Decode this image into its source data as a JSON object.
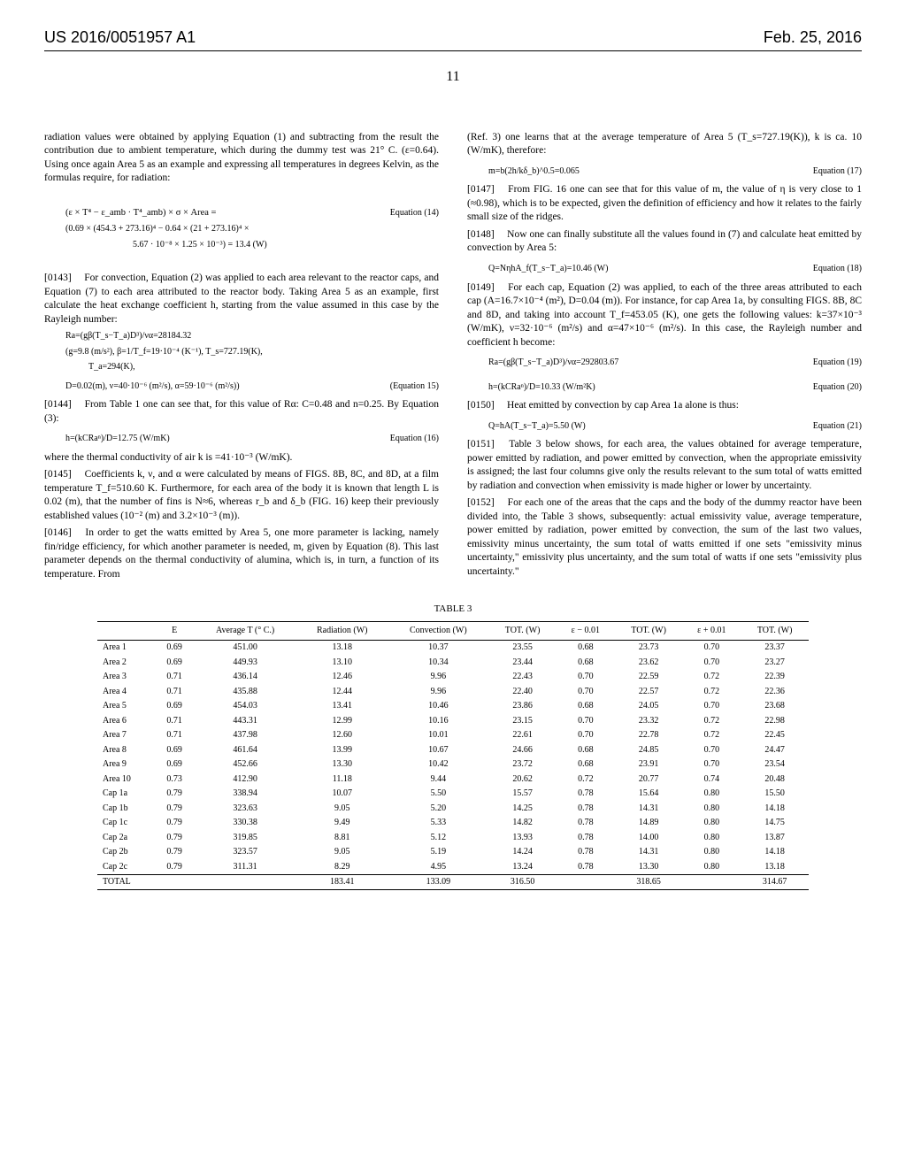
{
  "header": {
    "pub_number": "US 2016/0051957 A1",
    "date": "Feb. 25, 2016"
  },
  "page_number": "11",
  "left": {
    "intro": "radiation values were obtained by applying Equation (1) and subtracting from the result the contribution due to ambient temperature, which during the dummy test was 21° C. (ε=0.64). Using once again Area 5 as an example and expressing all temperatures in degrees Kelvin, as the formulas require, for radiation:",
    "eq14_a": "(ε × T⁴ − ε_amb · T⁴_amb) × σ × Area =",
    "eq14_b": "(0.69 × (454.3 + 273.16)⁴ − 0.64 × (21 + 273.16)⁴ ×",
    "eq14_c": "5.67 · 10⁻⁸ × 1.25 × 10⁻³) = 13.4 (W)",
    "eq14_label": "Equation (14)",
    "p0143": "[0143]  For convection, Equation (2) was applied to each area relevant to the reactor caps, and Equation (7) to each area attributed to the reactor body. Taking Area 5 as an example, first calculate the heat exchange coefficient h, starting from the value assumed in this case by the Rayleigh number:",
    "eq15_a": "Ra=(gβ(T_s−T_a)D³)/να=28184.32",
    "eq15_b": "(g=9.8 (m/s²), β=1/T_f=19·10⁻⁴ (K⁻¹), T_s=727.19(K),",
    "eq15_c": "T_a=294(K),",
    "eq15_d": "D=0.02(m), ν=40·10⁻⁶ (m²/s), α=59·10⁻⁶ (m²/s))",
    "eq15_label": "(Equation 15)",
    "p0144": "[0144]  From Table 1 one can see that, for this value of Rα: C=0.48 and n=0.25. By Equation (3):",
    "eq16": "h=(kCRaⁿ)/D=12.75 (W/mK)",
    "eq16_label": "Equation (16)",
    "p0144b": "where the thermal conductivity of air k is =41·10⁻³ (W/mK).",
    "p0145": "[0145]  Coefficients k, ν, and α were calculated by means of FIGS. 8B, 8C, and 8D, at a film temperature T_f=510.60 K. Furthermore, for each area of the body it is known that length L is 0.02 (m), that the number of fins is N≈6, whereas r_b and δ_b (FIG. 16) keep their previously established values (10⁻² (m) and 3.2×10⁻³ (m)).",
    "p0146": "[0146]  In order to get the watts emitted by Area 5, one more parameter is lacking, namely fin/ridge efficiency, for which another parameter is needed, m, given by Equation (8). This last parameter depends on the thermal conductivity of alumina, which is, in turn, a function of its temperature. From"
  },
  "right": {
    "intro": "(Ref. 3) one learns that at the average temperature of Area 5 (T_s=727.19(K)), k is ca. 10 (W/mK), therefore:",
    "eq17": "m=b(2h/kδ_b)^0.5=0.065",
    "eq17_label": "Equation (17)",
    "p0147": "[0147]  From FIG. 16 one can see that for this value of m, the value of η is very close to 1 (≈0.98), which is to be expected, given the definition of efficiency and how it relates to the fairly small size of the ridges.",
    "p0148": "[0148]  Now one can finally substitute all the values found in (7) and calculate heat emitted by convection by Area 5:",
    "eq18": "Q=NηhA_f(T_s−T_a)=10.46 (W)",
    "eq18_label": "Equation (18)",
    "p0149": "[0149]  For each cap, Equation (2) was applied, to each of the three areas attributed to each cap (A=16.7×10⁻⁴ (m²), D=0.04 (m)). For instance, for cap Area 1a, by consulting FIGS. 8B, 8C and 8D, and taking into account T_f=453.05 (K), one gets the following values: k=37×10⁻³ (W/mK), ν=32·10⁻⁶ (m²/s) and α=47×10⁻⁶ (m²/s). In this case, the Rayleigh number and coefficient h become:",
    "eq19": "Ra=(gβ(T_s−T_a)D³)/να=292803.67",
    "eq19_label": "Equation (19)",
    "eq20": "h=(kCRaⁿ)/D=10.33 (W/m²K)",
    "eq20_label": "Equation (20)",
    "p0150": "[0150]  Heat emitted by convection by cap Area 1a alone is thus:",
    "eq21": "Q=hA(T_s−T_a)=5.50 (W)",
    "eq21_label": "Equation (21)",
    "p0151": "[0151]  Table 3 below shows, for each area, the values obtained for average temperature, power emitted by radiation, and power emitted by convection, when the appropriate emissivity is assigned; the last four columns give only the results relevant to the sum total of watts emitted by radiation and convection when emissivity is made higher or lower by uncertainty.",
    "p0152": "[0152]  For each one of the areas that the caps and the body of the dummy reactor have been divided into, the Table 3 shows, subsequently: actual emissivity value, average temperature, power emitted by radiation, power emitted by convection, the sum of the last two values, emissivity minus uncertainty, the sum total of watts emitted if one sets \"emissivity minus uncertainty,\" emissivity plus uncertainty, and the sum total of watts if one sets \"emissivity plus uncertainty.\""
  },
  "table": {
    "caption": "TABLE 3",
    "columns": [
      "",
      "E",
      "Average T (° C.)",
      "Radiation (W)",
      "Convection (W)",
      "TOT. (W)",
      "ε − 0.01",
      "TOT. (W)",
      "ε + 0.01",
      "TOT. (W)"
    ],
    "rows": [
      [
        "Area 1",
        "0.69",
        "451.00",
        "13.18",
        "10.37",
        "23.55",
        "0.68",
        "23.73",
        "0.70",
        "23.37"
      ],
      [
        "Area 2",
        "0.69",
        "449.93",
        "13.10",
        "10.34",
        "23.44",
        "0.68",
        "23.62",
        "0.70",
        "23.27"
      ],
      [
        "Area 3",
        "0.71",
        "436.14",
        "12.46",
        "9.96",
        "22.43",
        "0.70",
        "22.59",
        "0.72",
        "22.39"
      ],
      [
        "Area 4",
        "0.71",
        "435.88",
        "12.44",
        "9.96",
        "22.40",
        "0.70",
        "22.57",
        "0.72",
        "22.36"
      ],
      [
        "Area 5",
        "0.69",
        "454.03",
        "13.41",
        "10.46",
        "23.86",
        "0.68",
        "24.05",
        "0.70",
        "23.68"
      ],
      [
        "Area 6",
        "0.71",
        "443.31",
        "12.99",
        "10.16",
        "23.15",
        "0.70",
        "23.32",
        "0.72",
        "22.98"
      ],
      [
        "Area 7",
        "0.71",
        "437.98",
        "12.60",
        "10.01",
        "22.61",
        "0.70",
        "22.78",
        "0.72",
        "22.45"
      ],
      [
        "Area 8",
        "0.69",
        "461.64",
        "13.99",
        "10.67",
        "24.66",
        "0.68",
        "24.85",
        "0.70",
        "24.47"
      ],
      [
        "Area 9",
        "0.69",
        "452.66",
        "13.30",
        "10.42",
        "23.72",
        "0.68",
        "23.91",
        "0.70",
        "23.54"
      ],
      [
        "Area 10",
        "0.73",
        "412.90",
        "11.18",
        "9.44",
        "20.62",
        "0.72",
        "20.77",
        "0.74",
        "20.48"
      ],
      [
        "Cap 1a",
        "0.79",
        "338.94",
        "10.07",
        "5.50",
        "15.57",
        "0.78",
        "15.64",
        "0.80",
        "15.50"
      ],
      [
        "Cap 1b",
        "0.79",
        "323.63",
        "9.05",
        "5.20",
        "14.25",
        "0.78",
        "14.31",
        "0.80",
        "14.18"
      ],
      [
        "Cap 1c",
        "0.79",
        "330.38",
        "9.49",
        "5.33",
        "14.82",
        "0.78",
        "14.89",
        "0.80",
        "14.75"
      ],
      [
        "Cap 2a",
        "0.79",
        "319.85",
        "8.81",
        "5.12",
        "13.93",
        "0.78",
        "14.00",
        "0.80",
        "13.87"
      ],
      [
        "Cap 2b",
        "0.79",
        "323.57",
        "9.05",
        "5.19",
        "14.24",
        "0.78",
        "14.31",
        "0.80",
        "14.18"
      ],
      [
        "Cap 2c",
        "0.79",
        "311.31",
        "8.29",
        "4.95",
        "13.24",
        "0.78",
        "13.30",
        "0.80",
        "13.18"
      ]
    ],
    "total": [
      "TOTAL",
      "",
      "",
      "183.41",
      "133.09",
      "316.50",
      "",
      "318.65",
      "",
      "314.67"
    ]
  }
}
